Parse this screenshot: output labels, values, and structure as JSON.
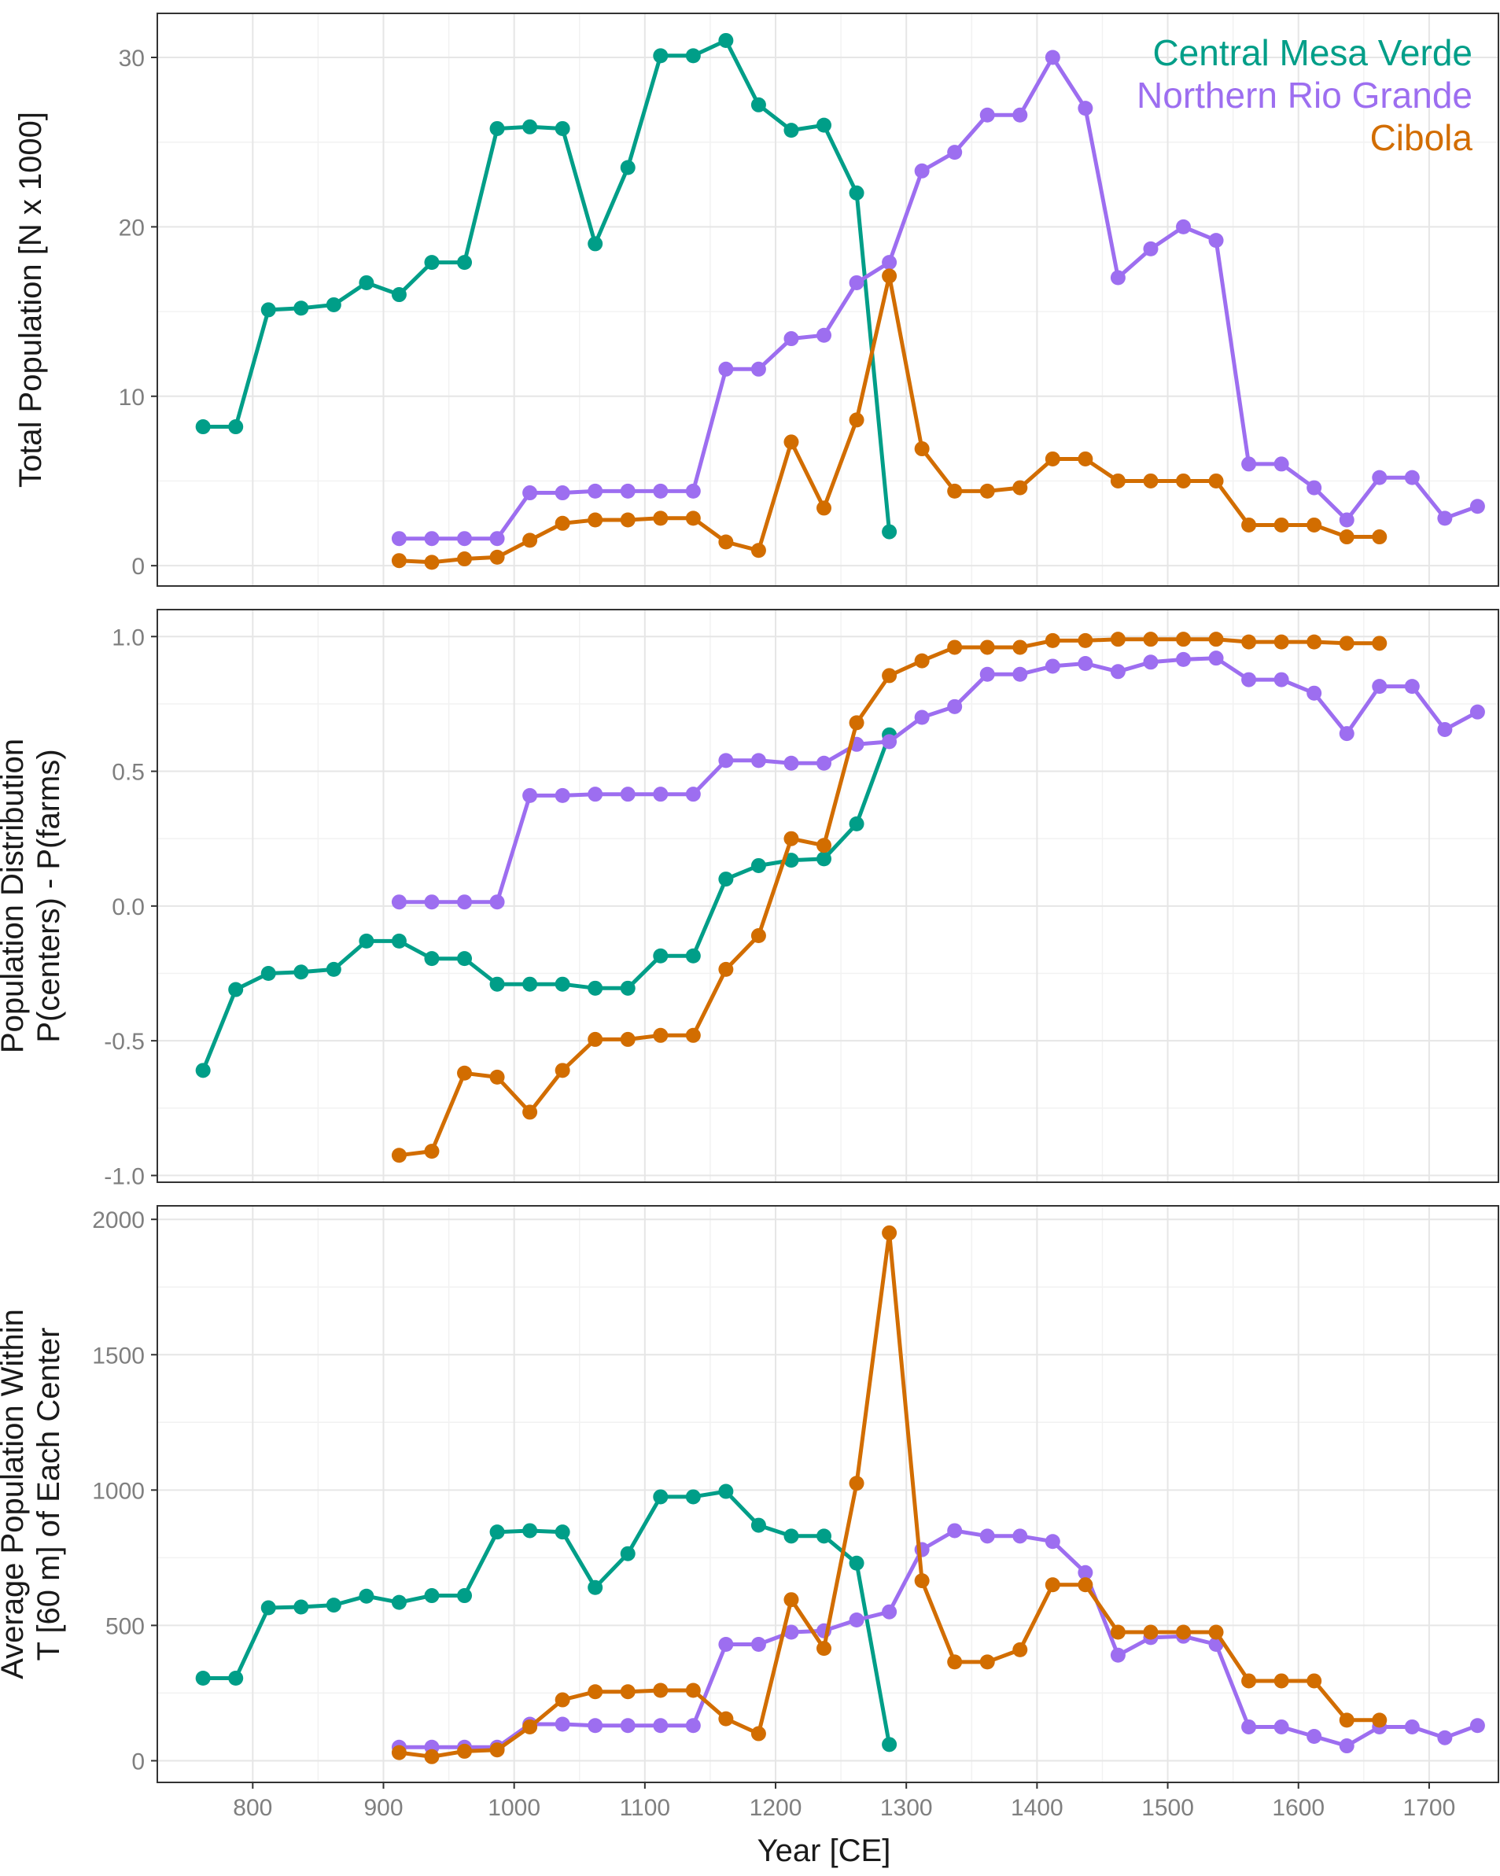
{
  "chart_data": {
    "type": "line",
    "colors": {
      "Central Mesa Verde": "#009E88",
      "Northern Rio Grande": "#9D6EF0",
      "Cibola": "#D26D00"
    },
    "legend": {
      "placement": "top-right",
      "entries": [
        "Central Mesa Verde",
        "Northern Rio Grande",
        "Cibola"
      ]
    },
    "xlabel": "Year [CE]",
    "xlim": [
      727,
      1753
    ],
    "xticks": [
      800,
      900,
      1000,
      1100,
      1200,
      1300,
      1400,
      1500,
      1600,
      1700
    ],
    "xtick_labels": [
      "800",
      "900",
      "1000",
      "1100",
      "1200",
      "1300",
      "1400",
      "1500",
      "1600",
      "1700"
    ],
    "panels": [
      {
        "ylabel_lines": [
          "Total Population [N x 1000]"
        ],
        "ylim": [
          -1.2,
          32.6
        ],
        "yticks": [
          0,
          10,
          20,
          30
        ],
        "ytick_labels": [
          "0",
          "10",
          "20",
          "30"
        ],
        "series": [
          {
            "name": "Central Mesa Verde",
            "x": [
              762,
              787,
              812,
              837,
              862,
              887,
              912,
              937,
              962,
              987,
              1012,
              1037,
              1062,
              1087,
              1112,
              1137,
              1162,
              1187,
              1212,
              1237,
              1262,
              1287
            ],
            "values": [
              8.2,
              8.2,
              15.1,
              15.2,
              15.4,
              16.7,
              16.0,
              17.9,
              17.9,
              25.8,
              25.9,
              25.8,
              19.0,
              23.5,
              30.1,
              30.1,
              31.0,
              27.2,
              25.7,
              26.0,
              22.0,
              2.0
            ]
          },
          {
            "name": "Northern Rio Grande",
            "x": [
              912,
              937,
              962,
              987,
              1012,
              1037,
              1062,
              1087,
              1112,
              1137,
              1162,
              1187,
              1212,
              1237,
              1262,
              1287,
              1312,
              1337,
              1362,
              1387,
              1412,
              1437,
              1462,
              1487,
              1512,
              1537,
              1562,
              1587,
              1612,
              1637,
              1662,
              1687,
              1712,
              1737
            ],
            "values": [
              1.6,
              1.6,
              1.6,
              1.6,
              4.3,
              4.3,
              4.4,
              4.4,
              4.4,
              4.4,
              11.6,
              11.6,
              13.4,
              13.6,
              16.7,
              17.9,
              23.3,
              24.4,
              26.6,
              26.6,
              30.0,
              27.0,
              17.0,
              18.7,
              20.0,
              19.2,
              6.0,
              6.0,
              4.6,
              2.7,
              5.2,
              5.2,
              2.8,
              3.5
            ]
          },
          {
            "name": "Cibola",
            "x": [
              912,
              937,
              962,
              987,
              1012,
              1037,
              1062,
              1087,
              1112,
              1137,
              1162,
              1187,
              1212,
              1237,
              1262,
              1287,
              1312,
              1337,
              1362,
              1387,
              1412,
              1437,
              1462,
              1487,
              1512,
              1537,
              1562,
              1587,
              1612,
              1637,
              1662
            ],
            "values": [
              0.3,
              0.2,
              0.4,
              0.5,
              1.5,
              2.5,
              2.7,
              2.7,
              2.8,
              2.8,
              1.4,
              0.9,
              7.3,
              3.4,
              8.6,
              17.1,
              6.9,
              4.4,
              4.4,
              4.6,
              6.3,
              6.3,
              5.0,
              5.0,
              5.0,
              5.0,
              2.4,
              2.4,
              2.4,
              1.7,
              1.7
            ]
          }
        ]
      },
      {
        "ylabel_lines": [
          "Population Distribution",
          "P(centers) - P(farms)"
        ],
        "ylim": [
          -1.025,
          1.1
        ],
        "yticks": [
          -1.0,
          -0.5,
          0.0,
          0.5,
          1.0
        ],
        "ytick_labels": [
          "-1.0",
          "-0.5",
          "0.0",
          "0.5",
          "1.0"
        ],
        "series": [
          {
            "name": "Central Mesa Verde",
            "x": [
              762,
              787,
              812,
              837,
              862,
              887,
              912,
              937,
              962,
              987,
              1012,
              1037,
              1062,
              1087,
              1112,
              1137,
              1162,
              1187,
              1212,
              1237,
              1262,
              1287
            ],
            "values": [
              -0.61,
              -0.31,
              -0.25,
              -0.245,
              -0.235,
              -0.13,
              -0.13,
              -0.195,
              -0.195,
              -0.29,
              -0.29,
              -0.29,
              -0.305,
              -0.305,
              -0.185,
              -0.185,
              0.1,
              0.15,
              0.17,
              0.175,
              0.305,
              0.635
            ]
          },
          {
            "name": "Northern Rio Grande",
            "x": [
              912,
              937,
              962,
              987,
              1012,
              1037,
              1062,
              1087,
              1112,
              1137,
              1162,
              1187,
              1212,
              1237,
              1262,
              1287,
              1312,
              1337,
              1362,
              1387,
              1412,
              1437,
              1462,
              1487,
              1512,
              1537,
              1562,
              1587,
              1612,
              1637,
              1662,
              1687,
              1712,
              1737
            ],
            "values": [
              0.015,
              0.015,
              0.015,
              0.015,
              0.41,
              0.41,
              0.415,
              0.415,
              0.415,
              0.415,
              0.54,
              0.54,
              0.53,
              0.53,
              0.6,
              0.61,
              0.7,
              0.74,
              0.86,
              0.86,
              0.89,
              0.9,
              0.87,
              0.905,
              0.915,
              0.92,
              0.84,
              0.84,
              0.79,
              0.64,
              0.815,
              0.815,
              0.655,
              0.72
            ]
          },
          {
            "name": "Cibola",
            "x": [
              912,
              937,
              962,
              987,
              1012,
              1037,
              1062,
              1087,
              1112,
              1137,
              1162,
              1187,
              1212,
              1237,
              1262,
              1287,
              1312,
              1337,
              1362,
              1387,
              1412,
              1437,
              1462,
              1487,
              1512,
              1537,
              1562,
              1587,
              1612,
              1637,
              1662
            ],
            "values": [
              -0.925,
              -0.91,
              -0.62,
              -0.635,
              -0.765,
              -0.61,
              -0.495,
              -0.495,
              -0.48,
              -0.48,
              -0.235,
              -0.11,
              0.25,
              0.225,
              0.68,
              0.855,
              0.91,
              0.96,
              0.96,
              0.96,
              0.985,
              0.985,
              0.99,
              0.99,
              0.99,
              0.99,
              0.98,
              0.98,
              0.98,
              0.975,
              0.975
            ]
          }
        ]
      },
      {
        "ylabel_lines": [
          "Average Population Within",
          "T [60 m] of Each Center"
        ],
        "ylim": [
          -80,
          2050
        ],
        "yticks": [
          0,
          500,
          1000,
          1500,
          2000
        ],
        "ytick_labels": [
          "0",
          "500",
          "1000",
          "1500",
          "2000"
        ],
        "series": [
          {
            "name": "Central Mesa Verde",
            "x": [
              762,
              787,
              812,
              837,
              862,
              887,
              912,
              937,
              962,
              987,
              1012,
              1037,
              1062,
              1087,
              1112,
              1137,
              1162,
              1187,
              1212,
              1237,
              1262,
              1287
            ],
            "values": [
              305,
              305,
              565,
              568,
              575,
              608,
              585,
              610,
              610,
              845,
              850,
              845,
              640,
              765,
              975,
              975,
              995,
              870,
              830,
              830,
              730,
              60
            ]
          },
          {
            "name": "Northern Rio Grande",
            "x": [
              912,
              937,
              962,
              987,
              1012,
              1037,
              1062,
              1087,
              1112,
              1137,
              1162,
              1187,
              1212,
              1237,
              1262,
              1287,
              1312,
              1337,
              1362,
              1387,
              1412,
              1437,
              1462,
              1487,
              1512,
              1537,
              1562,
              1587,
              1612,
              1637,
              1662,
              1687,
              1712,
              1737
            ],
            "values": [
              50,
              50,
              50,
              50,
              135,
              135,
              130,
              130,
              130,
              130,
              430,
              430,
              475,
              480,
              520,
              550,
              780,
              850,
              830,
              830,
              810,
              695,
              390,
              455,
              460,
              430,
              125,
              125,
              90,
              55,
              125,
              125,
              85,
              130
            ]
          },
          {
            "name": "Cibola",
            "x": [
              912,
              937,
              962,
              987,
              1012,
              1037,
              1062,
              1087,
              1112,
              1137,
              1162,
              1187,
              1212,
              1237,
              1262,
              1287,
              1312,
              1337,
              1362,
              1387,
              1412,
              1437,
              1462,
              1487,
              1512,
              1537,
              1562,
              1587,
              1612,
              1637,
              1662
            ],
            "values": [
              30,
              15,
              35,
              40,
              125,
              225,
              255,
              255,
              260,
              260,
              155,
              100,
              595,
              415,
              1025,
              1950,
              665,
              365,
              365,
              410,
              650,
              650,
              475,
              475,
              475,
              475,
              295,
              295,
              295,
              150,
              150
            ]
          }
        ]
      }
    ]
  }
}
